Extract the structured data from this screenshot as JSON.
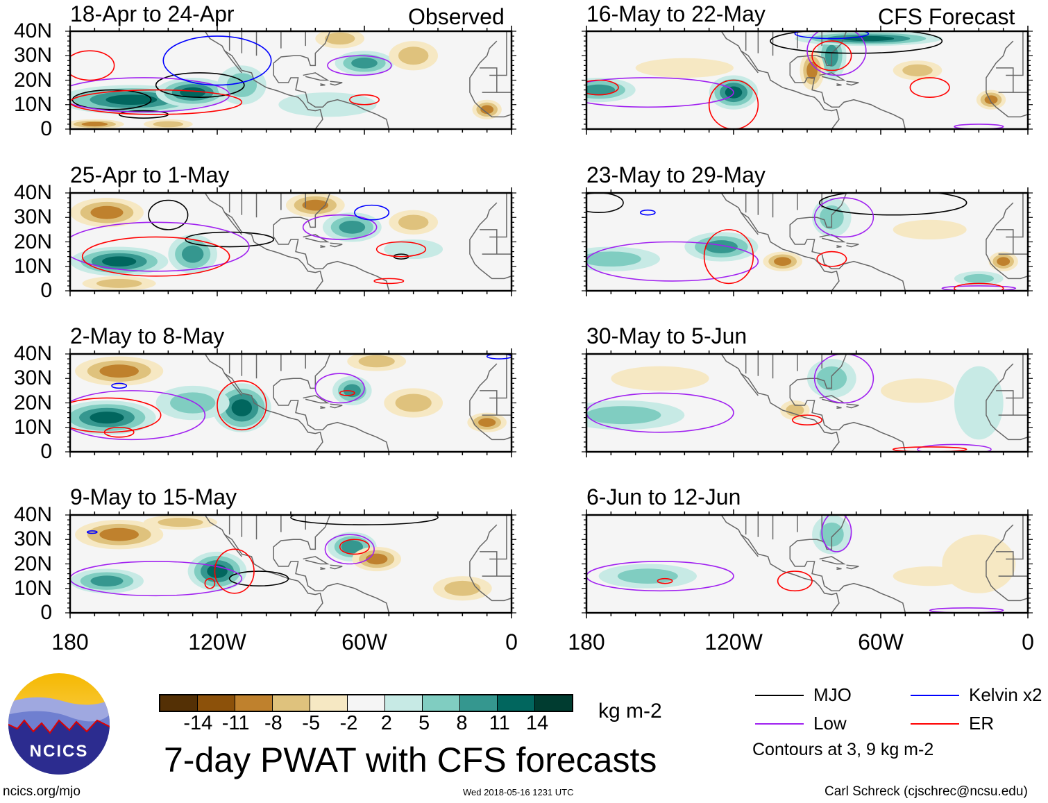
{
  "labels": {
    "observed": "Observed",
    "forecast": "CFS Forecast",
    "units": "kg m-2",
    "title": "7-day PWAT with CFS forecasts",
    "timestamp": "Wed 2018-05-16 1231 UTC",
    "site": "ncics.org/mjo",
    "author": "Carl Schreck (cjschrec@ncsu.edu)",
    "logo_text": "NCICS",
    "contour_note": "Contours at 3, 9 kg m-2"
  },
  "yticks": [
    "40N",
    "30N",
    "20N",
    "10N",
    "0"
  ],
  "xticks": [
    "180",
    "120W",
    "60W",
    "0"
  ],
  "legend": [
    {
      "name": "MJO",
      "color": "#000000"
    },
    {
      "name": "Kelvin x2",
      "color": "#0000ff"
    },
    {
      "name": "Low",
      "color": "#a020f0"
    },
    {
      "name": "ER",
      "color": "#ff0000"
    }
  ],
  "colorbar": {
    "colors": [
      "#543005",
      "#8c510a",
      "#bf812d",
      "#dfc27d",
      "#f6e8c3",
      "#f5f5f5",
      "#c7eae5",
      "#80cdc1",
      "#35978f",
      "#01665e",
      "#003c30"
    ],
    "levels": [
      "-14",
      "-11",
      "-8",
      "-5",
      "-2",
      "2",
      "5",
      "8",
      "11",
      "14"
    ],
    "bounds": [
      -14,
      -11,
      -8,
      -5,
      -2,
      2,
      5,
      8,
      11,
      14
    ]
  },
  "chart_data": {
    "type": "map",
    "panels": [
      {
        "title": "18-Apr to 24-Apr",
        "fills": [
          [
            -155,
            12,
            30,
            6,
            14
          ],
          [
            -130,
            15,
            15,
            6,
            12
          ],
          [
            -110,
            18,
            10,
            8,
            8
          ],
          [
            -60,
            27,
            12,
            5,
            9
          ],
          [
            -75,
            10,
            20,
            5,
            5
          ],
          [
            -170,
            2,
            12,
            2,
            -8
          ],
          [
            -140,
            2,
            10,
            2,
            -6
          ],
          [
            -70,
            37,
            10,
            4,
            -6
          ],
          [
            -40,
            30,
            10,
            6,
            -5
          ],
          [
            -10,
            8,
            6,
            4,
            -9
          ]
        ],
        "contours": [
          [
            "MJO",
            -163,
            12,
            16,
            4
          ],
          [
            "MJO",
            -127,
            18,
            18,
            5
          ],
          [
            "MJO",
            -150,
            6,
            10,
            1.5
          ],
          [
            "Low",
            -150,
            14,
            35,
            7
          ],
          [
            "Low",
            -62,
            26,
            13,
            4
          ],
          [
            "ER",
            -145,
            11,
            35,
            5
          ],
          [
            "ER",
            -172,
            26,
            10,
            6
          ],
          [
            "ER",
            -60,
            12,
            6,
            2
          ],
          [
            "Kelvin",
            -120,
            28,
            22,
            10
          ]
        ]
      },
      {
        "title": "16-May to 22-May",
        "fills": [
          [
            -175,
            16,
            15,
            5,
            9
          ],
          [
            -120,
            15,
            10,
            7,
            14
          ],
          [
            -80,
            30,
            6,
            10,
            10
          ],
          [
            -65,
            37,
            30,
            3,
            14
          ],
          [
            -88,
            24,
            5,
            8,
            -8
          ],
          [
            -45,
            24,
            10,
            4,
            -6
          ],
          [
            -15,
            12,
            6,
            4,
            -8
          ],
          [
            -140,
            25,
            20,
            4,
            -3
          ]
        ],
        "contours": [
          [
            "MJO",
            -70,
            36,
            35,
            5
          ],
          [
            "Low",
            -155,
            15,
            35,
            6
          ],
          [
            "Low",
            -78,
            32,
            12,
            10
          ],
          [
            "Low",
            -20,
            1,
            10,
            1
          ],
          [
            "ER",
            -175,
            17,
            8,
            3
          ],
          [
            "ER",
            -120,
            10,
            10,
            10
          ],
          [
            "ER",
            -80,
            30,
            8,
            6
          ],
          [
            "ER",
            -40,
            17,
            8,
            4
          ],
          [
            "Kelvin",
            -80,
            39,
            15,
            2
          ]
        ]
      },
      {
        "title": "25-Apr to 1-May",
        "fills": [
          [
            -160,
            12,
            20,
            6,
            14
          ],
          [
            -130,
            15,
            10,
            8,
            11
          ],
          [
            -65,
            26,
            12,
            6,
            11
          ],
          [
            -40,
            17,
            12,
            4,
            5
          ],
          [
            -165,
            32,
            15,
            6,
            -9
          ],
          [
            -80,
            35,
            12,
            5,
            -8
          ],
          [
            -40,
            28,
            10,
            5,
            -5
          ],
          [
            -160,
            3,
            15,
            3,
            -6
          ]
        ],
        "contours": [
          [
            "MJO",
            -140,
            31,
            8,
            6
          ],
          [
            "MJO",
            -115,
            21,
            18,
            3
          ],
          [
            "MJO",
            -45,
            14,
            3,
            1
          ],
          [
            "Low",
            -145,
            18,
            38,
            10
          ],
          [
            "Low",
            -70,
            26,
            15,
            5
          ],
          [
            "ER",
            -145,
            14,
            30,
            8
          ],
          [
            "ER",
            -45,
            17,
            10,
            3
          ],
          [
            "ER",
            -50,
            4,
            6,
            1
          ],
          [
            "Kelvin",
            -57,
            32,
            7,
            3
          ]
        ]
      },
      {
        "title": "23-May to 29-May",
        "fills": [
          [
            -170,
            13,
            20,
            5,
            8
          ],
          [
            -125,
            18,
            15,
            6,
            11
          ],
          [
            -80,
            30,
            8,
            8,
            8
          ],
          [
            -20,
            5,
            10,
            3,
            8
          ],
          [
            -100,
            12,
            8,
            4,
            -8
          ],
          [
            -10,
            12,
            6,
            4,
            -8
          ],
          [
            -40,
            25,
            15,
            4,
            -3
          ]
        ],
        "contours": [
          [
            "MJO",
            -175,
            36,
            10,
            4
          ],
          [
            "MJO",
            -55,
            36,
            30,
            5
          ],
          [
            "Low",
            -145,
            12,
            35,
            8
          ],
          [
            "Low",
            -75,
            30,
            12,
            8
          ],
          [
            "Low",
            -20,
            1,
            15,
            1
          ],
          [
            "ER",
            -122,
            14,
            10,
            11
          ],
          [
            "ER",
            -80,
            13,
            6,
            3
          ],
          [
            "ER",
            -20,
            1,
            10,
            2
          ],
          [
            "Kelvin",
            -155,
            32,
            3,
            1
          ]
        ]
      },
      {
        "title": "2-May to 8-May",
        "fills": [
          [
            -165,
            14,
            20,
            7,
            12
          ],
          [
            -110,
            18,
            12,
            10,
            14
          ],
          [
            -65,
            25,
            8,
            6,
            11
          ],
          [
            -130,
            20,
            15,
            7,
            7
          ],
          [
            -160,
            33,
            18,
            6,
            -9
          ],
          [
            -55,
            37,
            12,
            4,
            -7
          ],
          [
            -40,
            20,
            12,
            6,
            -5
          ],
          [
            -10,
            12,
            8,
            4,
            -8
          ]
        ],
        "contours": [
          [
            "Low",
            -155,
            15,
            30,
            10
          ],
          [
            "Low",
            -70,
            26,
            10,
            6
          ],
          [
            "ER",
            -165,
            15,
            22,
            7
          ],
          [
            "ER",
            -110,
            19,
            10,
            10
          ],
          [
            "ER",
            -160,
            8,
            6,
            2
          ],
          [
            "ER",
            -67,
            24,
            3,
            1
          ],
          [
            "Kelvin",
            -160,
            27,
            3,
            1
          ],
          [
            "Kelvin",
            -5,
            39,
            5,
            1
          ]
        ]
      },
      {
        "title": "30-May to 5-Jun",
        "fills": [
          [
            -165,
            15,
            25,
            6,
            8
          ],
          [
            -80,
            30,
            10,
            8,
            8
          ],
          [
            -20,
            20,
            10,
            15,
            5
          ],
          [
            -95,
            17,
            6,
            4,
            -6
          ],
          [
            -150,
            30,
            20,
            5,
            -3
          ],
          [
            -45,
            25,
            15,
            5,
            -3
          ]
        ],
        "contours": [
          [
            "Low",
            -150,
            16,
            30,
            8
          ],
          [
            "Low",
            -75,
            30,
            12,
            10
          ],
          [
            "Low",
            -30,
            1,
            15,
            2
          ],
          [
            "ER",
            -90,
            13,
            6,
            2
          ],
          [
            "ER",
            -40,
            1,
            15,
            1
          ]
        ]
      },
      {
        "title": "9-May to 15-May",
        "fills": [
          [
            -165,
            13,
            15,
            5,
            11
          ],
          [
            -120,
            17,
            12,
            8,
            14
          ],
          [
            -65,
            27,
            10,
            6,
            11
          ],
          [
            -160,
            32,
            18,
            6,
            -9
          ],
          [
            -55,
            22,
            10,
            5,
            -8
          ],
          [
            -20,
            10,
            12,
            5,
            -6
          ],
          [
            -135,
            37,
            15,
            3,
            -5
          ]
        ],
        "contours": [
          [
            "MJO",
            -103,
            14,
            12,
            3
          ],
          [
            "MJO",
            -60,
            39,
            30,
            3
          ],
          [
            "Low",
            -145,
            14,
            35,
            7
          ],
          [
            "Low",
            -66,
            26,
            10,
            6
          ],
          [
            "ER",
            -113,
            17,
            8,
            9
          ],
          [
            "ER",
            -123,
            12,
            2,
            2
          ],
          [
            "ER",
            -64,
            27,
            6,
            3
          ],
          [
            "Kelvin",
            -171,
            33,
            2,
            0.5
          ]
        ]
      },
      {
        "title": "6-Jun to 12-Jun",
        "fills": [
          [
            -155,
            15,
            20,
            5,
            8
          ],
          [
            -80,
            32,
            8,
            8,
            6
          ],
          [
            -20,
            20,
            15,
            12,
            -3
          ],
          [
            -40,
            15,
            15,
            4,
            -3
          ],
          [
            -115,
            30,
            15,
            6,
            2
          ]
        ],
        "contours": [
          [
            "Low",
            -150,
            15,
            30,
            6
          ],
          [
            "Low",
            -78,
            33,
            6,
            8
          ],
          [
            "Low",
            -25,
            1,
            15,
            1
          ],
          [
            "ER",
            -95,
            13,
            7,
            4
          ],
          [
            "ER",
            -148,
            13,
            3,
            1
          ]
        ]
      }
    ]
  }
}
